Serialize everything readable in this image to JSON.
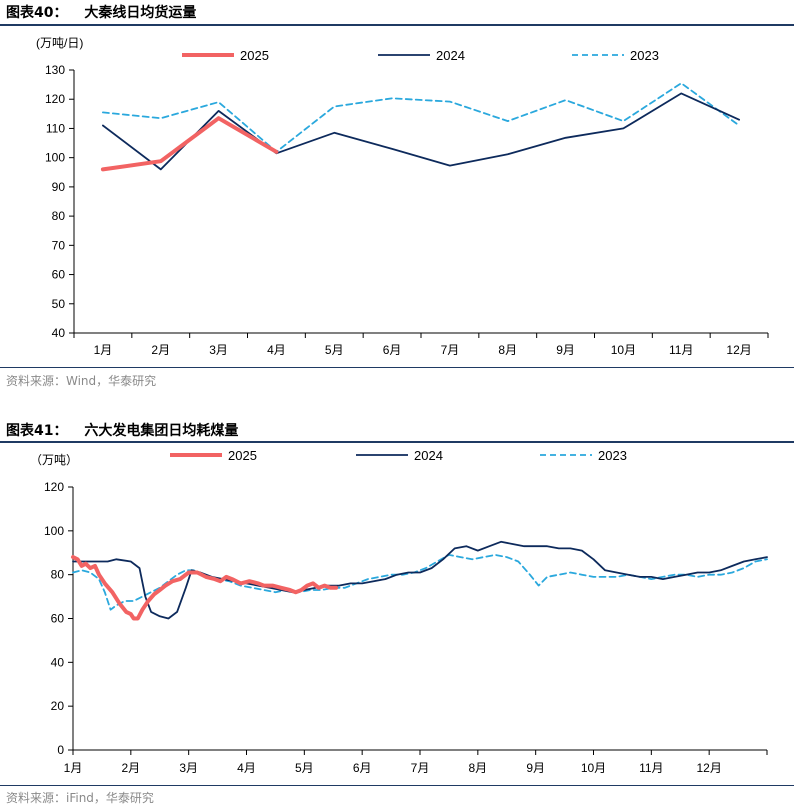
{
  "chart_data": [
    {
      "type": "line",
      "figure_label": "图表40：",
      "title": "大秦线日均货运量",
      "unit_label": "(万吨/日)",
      "categories": [
        "1月",
        "2月",
        "3月",
        "4月",
        "5月",
        "6月",
        "7月",
        "8月",
        "9月",
        "10月",
        "11月",
        "12月"
      ],
      "ylim": [
        40,
        130
      ],
      "yticks": [
        40,
        50,
        60,
        70,
        80,
        90,
        100,
        110,
        120,
        130
      ],
      "legend_position": "top",
      "series": [
        {
          "name": "2025",
          "color": "#f26363",
          "style": "solid-thick",
          "values": [
            96,
            98.8,
            113.5,
            102,
            null,
            null,
            null,
            null,
            null,
            null,
            null,
            null
          ]
        },
        {
          "name": "2024",
          "color": "#0d2a5c",
          "style": "solid",
          "values": [
            111,
            96,
            116,
            101.5,
            108.5,
            103,
            97.3,
            101.2,
            106.8,
            110,
            122,
            113
          ]
        },
        {
          "name": "2023",
          "color": "#2aa8dd",
          "style": "dashed",
          "values": [
            115.5,
            113.5,
            119,
            102,
            117.5,
            120.3,
            119.2,
            112.5,
            119.7,
            112.5,
            125.5,
            111
          ]
        }
      ],
      "source": "资料来源：Wind，华泰研究"
    },
    {
      "type": "line",
      "figure_label": "图表41：",
      "title": "六大发电集团日均耗煤量",
      "unit_label": "（万吨）",
      "categories": [
        "1月",
        "2月",
        "3月",
        "4月",
        "5月",
        "6月",
        "7月",
        "8月",
        "9月",
        "10月",
        "11月",
        "12月"
      ],
      "x_unit": "month-position (1.0 = start of 1月)",
      "ylim": [
        0,
        120
      ],
      "yticks": [
        0,
        20,
        40,
        60,
        80,
        100,
        120
      ],
      "legend_position": "top",
      "series": [
        {
          "name": "2025",
          "color": "#f26363",
          "style": "solid-thick",
          "points": [
            [
              1.0,
              88
            ],
            [
              1.08,
              87
            ],
            [
              1.15,
              84
            ],
            [
              1.22,
              85
            ],
            [
              1.3,
              83
            ],
            [
              1.38,
              84
            ],
            [
              1.45,
              80
            ],
            [
              1.55,
              76
            ],
            [
              1.68,
              72
            ],
            [
              1.8,
              67
            ],
            [
              1.92,
              63
            ],
            [
              2.0,
              62
            ],
            [
              2.05,
              60
            ],
            [
              2.12,
              60
            ],
            [
              2.2,
              64
            ],
            [
              2.3,
              68
            ],
            [
              2.4,
              71
            ],
            [
              2.5,
              73
            ],
            [
              2.6,
              75
            ],
            [
              2.72,
              77
            ],
            [
              2.85,
              78
            ],
            [
              3.0,
              81
            ],
            [
              3.15,
              81
            ],
            [
              3.3,
              79
            ],
            [
              3.45,
              78
            ],
            [
              3.55,
              77
            ],
            [
              3.65,
              79
            ],
            [
              3.75,
              78
            ],
            [
              3.9,
              76
            ],
            [
              4.05,
              77
            ],
            [
              4.2,
              76
            ],
            [
              4.3,
              75
            ],
            [
              4.45,
              75
            ],
            [
              4.6,
              74
            ],
            [
              4.75,
              73
            ],
            [
              4.85,
              72
            ],
            [
              4.95,
              73
            ],
            [
              5.05,
              75
            ],
            [
              5.15,
              76
            ],
            [
              5.25,
              74
            ],
            [
              5.35,
              75
            ],
            [
              5.45,
              74
            ],
            [
              5.55,
              74
            ]
          ]
        },
        {
          "name": "2024",
          "color": "#0d2a5c",
          "style": "solid",
          "points": [
            [
              1.0,
              86
            ],
            [
              1.2,
              86
            ],
            [
              1.4,
              86
            ],
            [
              1.6,
              86
            ],
            [
              1.75,
              87
            ],
            [
              2.0,
              86
            ],
            [
              2.15,
              83
            ],
            [
              2.25,
              70
            ],
            [
              2.35,
              63
            ],
            [
              2.5,
              61
            ],
            [
              2.65,
              60
            ],
            [
              2.8,
              63
            ],
            [
              2.95,
              74
            ],
            [
              3.05,
              82
            ],
            [
              3.2,
              81
            ],
            [
              3.4,
              79
            ],
            [
              3.6,
              78
            ],
            [
              3.8,
              77
            ],
            [
              4.0,
              76
            ],
            [
              4.2,
              75
            ],
            [
              4.4,
              74
            ],
            [
              4.6,
              73
            ],
            [
              4.8,
              72
            ],
            [
              5.0,
              73
            ],
            [
              5.2,
              74
            ],
            [
              5.4,
              75
            ],
            [
              5.6,
              75
            ],
            [
              5.8,
              76
            ],
            [
              6.0,
              76
            ],
            [
              6.2,
              77
            ],
            [
              6.4,
              78
            ],
            [
              6.6,
              80
            ],
            [
              6.8,
              81
            ],
            [
              7.0,
              81
            ],
            [
              7.2,
              83
            ],
            [
              7.4,
              87
            ],
            [
              7.6,
              92
            ],
            [
              7.8,
              93
            ],
            [
              8.0,
              91
            ],
            [
              8.2,
              93
            ],
            [
              8.4,
              95
            ],
            [
              8.6,
              94
            ],
            [
              8.8,
              93
            ],
            [
              9.0,
              93
            ],
            [
              9.2,
              93
            ],
            [
              9.4,
              92
            ],
            [
              9.6,
              92
            ],
            [
              9.8,
              91
            ],
            [
              10.0,
              87
            ],
            [
              10.2,
              82
            ],
            [
              10.4,
              81
            ],
            [
              10.6,
              80
            ],
            [
              10.8,
              79
            ],
            [
              11.0,
              79
            ],
            [
              11.2,
              78
            ],
            [
              11.4,
              79
            ],
            [
              11.6,
              80
            ],
            [
              11.8,
              81
            ],
            [
              12.0,
              81
            ],
            [
              12.2,
              82
            ],
            [
              12.4,
              84
            ],
            [
              12.6,
              86
            ],
            [
              12.8,
              87
            ],
            [
              13.0,
              88
            ]
          ]
        },
        {
          "name": "2023",
          "color": "#2aa8dd",
          "style": "dashed",
          "points": [
            [
              1.0,
              81
            ],
            [
              1.15,
              82
            ],
            [
              1.3,
              81
            ],
            [
              1.45,
              78
            ],
            [
              1.55,
              72
            ],
            [
              1.65,
              64
            ],
            [
              1.75,
              66
            ],
            [
              1.9,
              68
            ],
            [
              2.05,
              68
            ],
            [
              2.2,
              70
            ],
            [
              2.35,
              72
            ],
            [
              2.5,
              74
            ],
            [
              2.65,
              77
            ],
            [
              2.8,
              80
            ],
            [
              2.95,
              82
            ],
            [
              3.1,
              82
            ],
            [
              3.3,
              79
            ],
            [
              3.5,
              78
            ],
            [
              3.7,
              77
            ],
            [
              3.9,
              75
            ],
            [
              4.1,
              74
            ],
            [
              4.3,
              73
            ],
            [
              4.5,
              72
            ],
            [
              4.7,
              73
            ],
            [
              4.9,
              72
            ],
            [
              5.1,
              73
            ],
            [
              5.3,
              73
            ],
            [
              5.5,
              74
            ],
            [
              5.7,
              74
            ],
            [
              5.9,
              76
            ],
            [
              6.1,
              78
            ],
            [
              6.3,
              79
            ],
            [
              6.5,
              80
            ],
            [
              6.7,
              80
            ],
            [
              6.9,
              81
            ],
            [
              7.1,
              83
            ],
            [
              7.3,
              86
            ],
            [
              7.5,
              89
            ],
            [
              7.7,
              88
            ],
            [
              7.9,
              87
            ],
            [
              8.1,
              88
            ],
            [
              8.3,
              89
            ],
            [
              8.5,
              88
            ],
            [
              8.7,
              86
            ],
            [
              8.9,
              80
            ],
            [
              9.05,
              75
            ],
            [
              9.2,
              79
            ],
            [
              9.4,
              80
            ],
            [
              9.6,
              81
            ],
            [
              9.8,
              80
            ],
            [
              10.0,
              79
            ],
            [
              10.2,
              79
            ],
            [
              10.4,
              79
            ],
            [
              10.6,
              80
            ],
            [
              10.8,
              79
            ],
            [
              11.0,
              78
            ],
            [
              11.2,
              79
            ],
            [
              11.4,
              80
            ],
            [
              11.6,
              80
            ],
            [
              11.8,
              79
            ],
            [
              12.0,
              80
            ],
            [
              12.2,
              80
            ],
            [
              12.4,
              81
            ],
            [
              12.6,
              83
            ],
            [
              12.8,
              86
            ],
            [
              13.0,
              87
            ]
          ]
        }
      ],
      "source": "资料来源：iFind，华泰研究"
    }
  ]
}
